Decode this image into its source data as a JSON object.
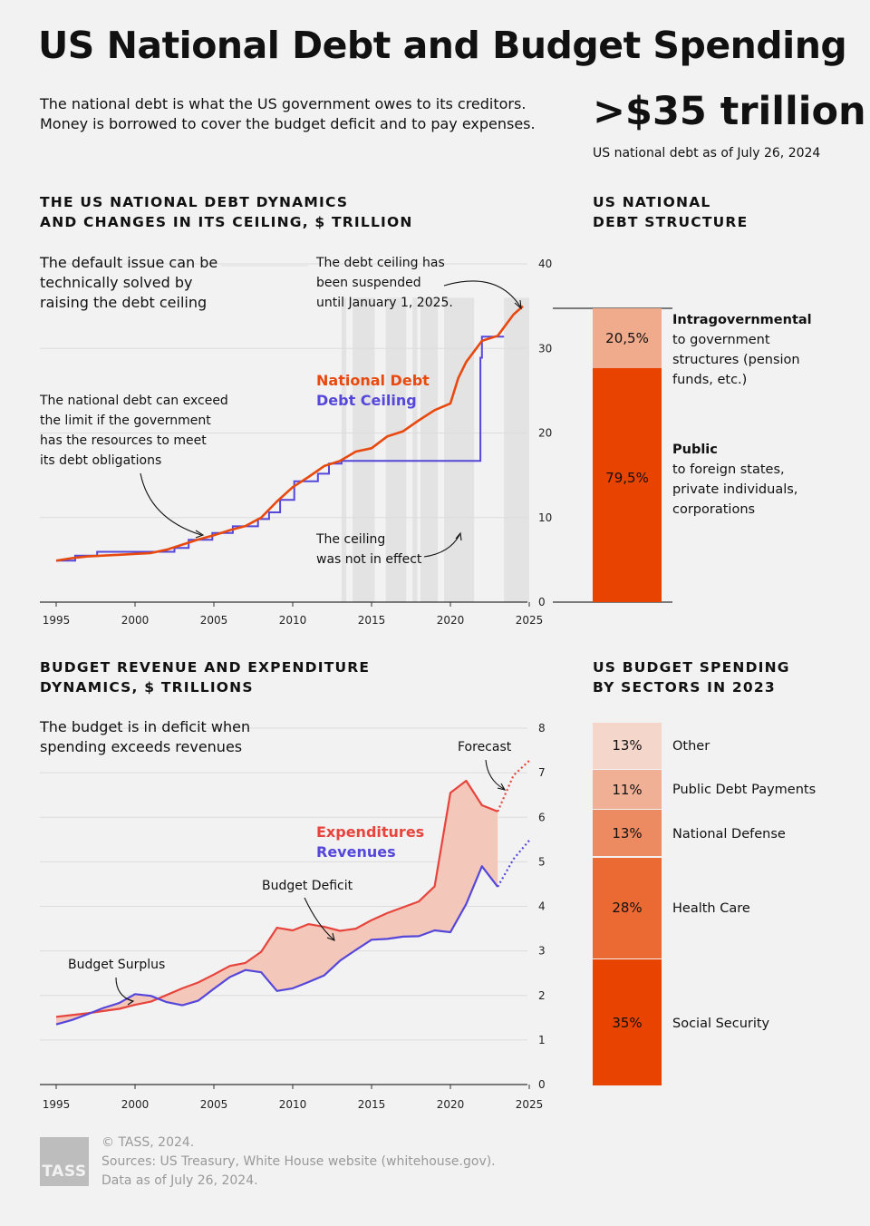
{
  "title": "US National Debt and Budget Spending",
  "intro": "The national debt is what the US government owes to its creditors. Money is borrowed to cover the budget deficit and to pay expenses.",
  "headline": {
    "value": ">$35 trillion",
    "caption": "US national debt as of July 26, 2024"
  },
  "colors": {
    "debt": "#e8490f",
    "ceiling": "#5547d9",
    "expenditures": "#e6443c",
    "revenues": "#5547d9",
    "deficit_fill": "#f3c7b9",
    "shade": "#e3e3e3"
  },
  "debt_section": {
    "title_line1": "THE US NATIONAL DEBT DYNAMICS",
    "title_line2": "AND CHANGES IN ITS CEILING, $ TRILLION",
    "note_default_1": "The default issue can be",
    "note_default_2": "technically solved by",
    "note_default_3": "raising the debt ceiling",
    "note_suspended_1": "The debt ceiling has",
    "note_suspended_2": "been suspended",
    "note_suspended_3": "until January 1, 2025.",
    "note_exceed_1": "The national debt can exceed",
    "note_exceed_2": "the limit if the government",
    "note_exceed_3": "has the resources to meet",
    "note_exceed_4": "its debt obligations",
    "note_ceiling_1": "The ceiling",
    "note_ceiling_2": "was not in effect",
    "legend_debt": "National Debt",
    "legend_ceiling": "Debt Ceiling"
  },
  "structure_section": {
    "title_line1": "US NATIONAL",
    "title_line2": "DEBT STRUCTURE",
    "segments": [
      {
        "pct": "20,5%",
        "value": 20.5,
        "color": "#f0aa8c",
        "label": "Intragovernmental",
        "desc1": "to government",
        "desc2": "structures (pension",
        "desc3": "funds, etc.)"
      },
      {
        "pct": "79,5%",
        "value": 79.5,
        "color": "#e84400",
        "label": "Public",
        "desc1": "to foreign states,",
        "desc2": "private individuals,",
        "desc3": "corporations"
      }
    ]
  },
  "budget_section": {
    "title_line1": "BUDGET REVENUE AND EXPENDITURE",
    "title_line2": "DYNAMICS, $ TRILLIONS",
    "note_deficit_1": "The budget is in deficit when",
    "note_deficit_2": "spending exceeds revenues",
    "note_forecast": "Forecast",
    "note_budget_deficit": "Budget Deficit",
    "note_budget_surplus": "Budget Surplus",
    "legend_exp": "Expenditures",
    "legend_rev": "Revenues"
  },
  "sector_section": {
    "title_line1": "US BUDGET SPENDING",
    "title_line2": "BY SECTORS IN 2023",
    "segments": [
      {
        "pct": "13%",
        "value": 13,
        "color": "#f4d6ca",
        "label": "Other"
      },
      {
        "pct": "11%",
        "value": 11,
        "color": "#f0b096",
        "label": "Public Debt Payments"
      },
      {
        "pct": "13%",
        "value": 13,
        "color": "#ec8a62",
        "label": "National Defense"
      },
      {
        "pct": "28%",
        "value": 28,
        "color": "#eb6a34",
        "label": "Health Care"
      },
      {
        "pct": "35%",
        "value": 35,
        "color": "#e84400",
        "label": "Social Security"
      }
    ]
  },
  "footer": {
    "logo": "TASS",
    "line1": "© TASS, 2024.",
    "line2": "Sources: US Treasury, White House website (whitehouse.gov).",
    "line3": "Data as of July 26, 2024."
  },
  "chart_data": [
    {
      "type": "line",
      "title": "THE US NATIONAL DEBT DYNAMICS AND CHANGES IN ITS CEILING, $ TRILLION",
      "xlim": [
        1995,
        2025
      ],
      "ylim": [
        0,
        40
      ],
      "x_ticks": [
        1995,
        2000,
        2005,
        2010,
        2015,
        2020,
        2025
      ],
      "y_ticks": [
        0,
        10,
        20,
        30,
        40
      ],
      "grid": true,
      "series": [
        {
          "name": "National Debt",
          "x": [
            1995,
            1996,
            1997,
            1998,
            1999,
            2000,
            2001,
            2002,
            2003,
            2004,
            2005,
            2006,
            2007,
            2008,
            2009,
            2010,
            2011,
            2012,
            2013,
            2014,
            2015,
            2016,
            2017,
            2018,
            2019,
            2020,
            2020.5,
            2021,
            2022,
            2023,
            2024,
            2024.6
          ],
          "y": [
            4.9,
            5.2,
            5.4,
            5.5,
            5.6,
            5.7,
            5.8,
            6.2,
            6.8,
            7.4,
            7.9,
            8.5,
            9.0,
            10.0,
            11.9,
            13.6,
            14.8,
            16.1,
            16.7,
            17.8,
            18.2,
            19.6,
            20.2,
            21.5,
            22.7,
            23.5,
            26.5,
            28.4,
            30.9,
            31.5,
            34.0,
            35.0
          ]
        },
        {
          "name": "Debt Ceiling",
          "type": "step",
          "x": [
            1995,
            1996.2,
            1997.6,
            2002.5,
            2003.4,
            2004.9,
            2006.2,
            2007.8,
            2008.5,
            2009.2,
            2010.1,
            2011.6,
            2012.3,
            2013.1,
            2021.9,
            2022,
            2023.4
          ],
          "y": [
            4.9,
            5.5,
            5.95,
            6.4,
            7.38,
            8.18,
            8.97,
            9.82,
            10.62,
            12.1,
            14.29,
            15.19,
            16.39,
            16.7,
            28.9,
            31.4,
            31.4
          ]
        }
      ],
      "ceiling_suspended_periods": [
        [
          2013.1,
          2013.4
        ],
        [
          2013.8,
          2015.2
        ],
        [
          2015.9,
          2017.2
        ],
        [
          2017.6,
          2017.9
        ],
        [
          2018.1,
          2019.2
        ],
        [
          2019.6,
          2021.5
        ],
        [
          2023.4,
          2025
        ]
      ]
    },
    {
      "type": "line",
      "title": "BUDGET REVENUE AND EXPENDITURE DYNAMICS, $ TRILLIONS",
      "xlim": [
        1995,
        2025
      ],
      "ylim": [
        0,
        8
      ],
      "x_ticks": [
        1995,
        2000,
        2005,
        2010,
        2015,
        2020,
        2025
      ],
      "y_ticks": [
        0,
        1,
        2,
        3,
        4,
        5,
        6,
        7,
        8
      ],
      "grid": true,
      "series": [
        {
          "name": "Expenditures",
          "x": [
            1995,
            1996,
            1997,
            1998,
            1999,
            2000,
            2001,
            2002,
            2003,
            2004,
            2005,
            2006,
            2007,
            2008,
            2009,
            2010,
            2011,
            2012,
            2013,
            2014,
            2015,
            2016,
            2017,
            2018,
            2019,
            2020,
            2021,
            2022,
            2023
          ],
          "y": [
            1.52,
            1.56,
            1.6,
            1.65,
            1.7,
            1.79,
            1.86,
            2.01,
            2.16,
            2.29,
            2.47,
            2.66,
            2.73,
            2.98,
            3.52,
            3.46,
            3.6,
            3.54,
            3.45,
            3.5,
            3.69,
            3.85,
            3.98,
            4.11,
            4.45,
            6.55,
            6.82,
            6.27,
            6.13
          ]
        },
        {
          "name": "Revenues",
          "x": [
            1995,
            1996,
            1997,
            1998,
            1999,
            2000,
            2001,
            2002,
            2003,
            2004,
            2005,
            2006,
            2007,
            2008,
            2009,
            2010,
            2011,
            2012,
            2013,
            2014,
            2015,
            2016,
            2017,
            2018,
            2019,
            2020,
            2021,
            2022,
            2023
          ],
          "y": [
            1.35,
            1.45,
            1.58,
            1.72,
            1.83,
            2.03,
            1.99,
            1.85,
            1.78,
            1.88,
            2.15,
            2.41,
            2.57,
            2.52,
            2.1,
            2.16,
            2.3,
            2.45,
            2.78,
            3.02,
            3.25,
            3.27,
            3.32,
            3.33,
            3.46,
            3.42,
            4.05,
            4.9,
            4.44
          ]
        },
        {
          "name": "Expenditures forecast",
          "style": "dotted",
          "x": [
            2023,
            2024,
            2025
          ],
          "y": [
            6.13,
            6.94,
            7.27
          ]
        },
        {
          "name": "Revenues forecast",
          "style": "dotted",
          "x": [
            2023,
            2024,
            2025
          ],
          "y": [
            4.44,
            5.06,
            5.48
          ]
        }
      ]
    },
    {
      "type": "bar",
      "title": "US NATIONAL DEBT STRUCTURE",
      "stacked": true,
      "categories": [
        "Intragovernmental",
        "Public"
      ],
      "values": [
        20.5,
        79.5
      ]
    },
    {
      "type": "bar",
      "title": "US BUDGET SPENDING BY SECTORS IN 2023",
      "stacked": true,
      "categories": [
        "Other",
        "Public Debt Payments",
        "National Defense",
        "Health Care",
        "Social Security"
      ],
      "values": [
        13,
        11,
        13,
        28,
        35
      ]
    }
  ]
}
